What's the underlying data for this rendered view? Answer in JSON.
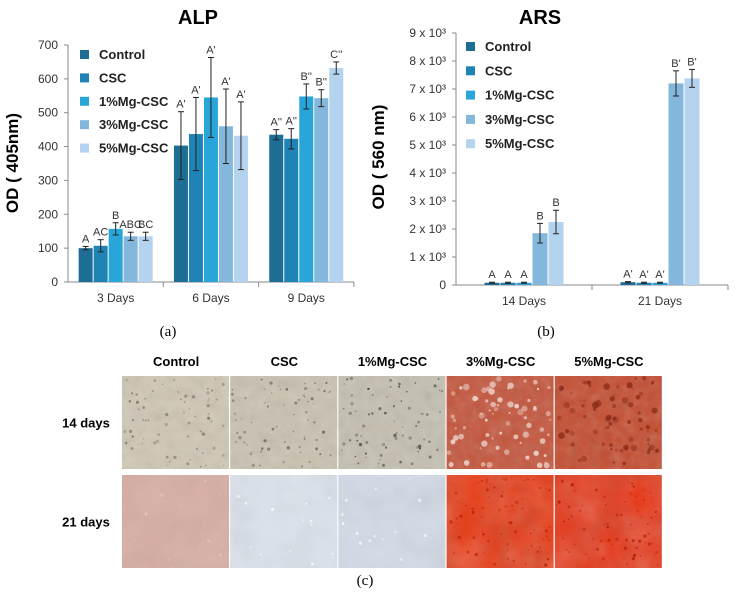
{
  "series_colors": [
    "#1d6d95",
    "#1f83b5",
    "#28a6d9",
    "#84b7dc",
    "#b4d3ee"
  ],
  "panel_labels": [
    "(a)",
    "(b)",
    "(c)"
  ],
  "chart_data": [
    {
      "type": "bar",
      "title": "ALP",
      "xlabel": "",
      "ylabel": "OD ( 405nm)",
      "ylim": [
        0,
        700
      ],
      "yticks": [
        "0",
        "100",
        "200",
        "300",
        "400",
        "500",
        "600",
        "700"
      ],
      "categories": [
        "3 Days",
        "6 Days",
        "9 Days"
      ],
      "legend_position": "top-left",
      "series": [
        {
          "name": "Control",
          "values": [
            100,
            403,
            435
          ],
          "errors": [
            5,
            100,
            15
          ],
          "letters": [
            "A",
            "A'",
            "A''"
          ]
        },
        {
          "name": "CSC",
          "values": [
            107,
            437,
            423
          ],
          "errors": [
            18,
            108,
            30
          ],
          "letters": [
            "AC",
            "A'",
            "A''"
          ]
        },
        {
          "name": "1%Mg-CSC",
          "values": [
            157,
            545,
            548
          ],
          "errors": [
            18,
            118,
            37
          ],
          "letters": [
            "B",
            "A'",
            "B''"
          ]
        },
        {
          "name": "3%Mg-CSC",
          "values": [
            135,
            460,
            543
          ],
          "errors": [
            12,
            110,
            25
          ],
          "letters": [
            "ABC",
            "A'",
            "B''"
          ]
        },
        {
          "name": "5%Mg-CSC",
          "values": [
            135,
            432,
            632
          ],
          "errors": [
            12,
            100,
            18
          ],
          "letters": [
            "BC",
            "A'",
            "C''"
          ]
        }
      ]
    },
    {
      "type": "bar",
      "title": "ARS",
      "xlabel": "",
      "ylabel": "OD ( 560 nm)",
      "ylim": [
        0,
        9000
      ],
      "yticks": [
        "0",
        "1 x 10³",
        "2 x 10³",
        "3 x 10³",
        "4 x 10³",
        "5 x 10³",
        "6 x 10³",
        "7 x 10³",
        "8 x 10³",
        "9 x 10³"
      ],
      "categories": [
        "14 Days",
        "21 Days"
      ],
      "legend_position": "top-left",
      "series": [
        {
          "name": "Control",
          "values": [
            80,
            100
          ],
          "errors": [
            20,
            20
          ],
          "letters": [
            "A",
            "A'"
          ]
        },
        {
          "name": "CSC",
          "values": [
            80,
            80
          ],
          "errors": [
            20,
            20
          ],
          "letters": [
            "A",
            "A'"
          ]
        },
        {
          "name": "1%Mg-CSC",
          "values": [
            80,
            80
          ],
          "errors": [
            20,
            20
          ],
          "letters": [
            "A",
            "A'"
          ]
        },
        {
          "name": "3%Mg-CSC",
          "values": [
            1850,
            7200
          ],
          "errors": [
            350,
            450
          ],
          "letters": [
            "B",
            "B'"
          ]
        },
        {
          "name": "5%Mg-CSC",
          "values": [
            2250,
            7380
          ],
          "errors": [
            420,
            320
          ],
          "letters": [
            "B",
            "B'"
          ]
        }
      ]
    }
  ],
  "image_grid": {
    "columns": [
      "Control",
      "CSC",
      "1%Mg-CSC",
      "3%Mg-CSC",
      "5%Mg-CSC"
    ],
    "rows": [
      {
        "label": "14 days",
        "tiles": [
          {
            "base": "#cfc7b5",
            "spot": "#7d7566",
            "stain": "none"
          },
          {
            "base": "#c9c2b1",
            "spot": "#6b6357",
            "stain": "none"
          },
          {
            "base": "#c4bfb0",
            "spot": "#4e4a44",
            "stain": "none"
          },
          {
            "base": "#c4553c",
            "spot": "#f3e4dc",
            "stain": "mottled"
          },
          {
            "base": "#c44d30",
            "spot": "#8a2a18",
            "stain": "mottled"
          }
        ]
      },
      {
        "label": "21 days",
        "tiles": [
          {
            "base": "#d7aea4",
            "spot": "#e6c8bf",
            "stain": "soft"
          },
          {
            "base": "#dbe2ea",
            "spot": "#ffffff",
            "stain": "soft"
          },
          {
            "base": "#d3dae6",
            "spot": "#ffffff",
            "stain": "soft"
          },
          {
            "base": "#e83a14",
            "spot": "#b81e06",
            "stain": "dense"
          },
          {
            "base": "#e6391a",
            "spot": "#b01c08",
            "stain": "dense"
          }
        ]
      }
    ]
  }
}
